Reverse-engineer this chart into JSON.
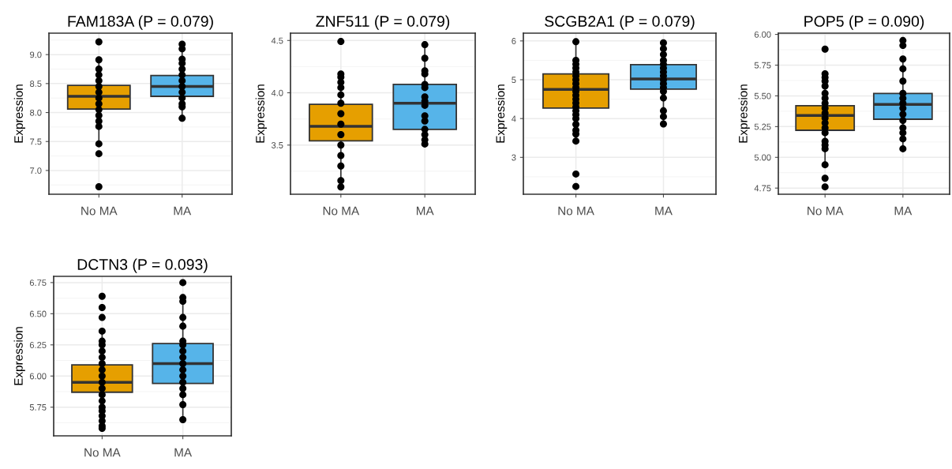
{
  "chart_data": [
    {
      "type": "box",
      "title": "FAM183A (P = 0.079)",
      "ylabel": "Expression",
      "categories": [
        "No MA",
        "MA"
      ],
      "colors": [
        "#e69f00",
        "#56b4e9"
      ],
      "grid": true,
      "ylim": [
        6.59,
        9.37
      ],
      "yticks": [
        {
          "value": 7.0,
          "label": "7.0"
        },
        {
          "value": 7.5,
          "label": "7.5"
        },
        {
          "value": 8.0,
          "label": "8.0"
        },
        {
          "value": 8.5,
          "label": "8.5"
        },
        {
          "value": 9.0,
          "label": "9.0"
        }
      ],
      "boxes": [
        {
          "low": 7.46,
          "q1": 8.06,
          "median": 8.28,
          "q3": 8.47,
          "high": 8.91
        },
        {
          "low": 7.9,
          "q1": 8.28,
          "median": 8.45,
          "q3": 8.64,
          "high": 9.18
        }
      ],
      "series": [
        {
          "type": "scatter",
          "color": "#000000",
          "x": [
            "No MA",
            "No MA",
            "No MA",
            "No MA",
            "No MA",
            "No MA",
            "No MA",
            "No MA",
            "No MA",
            "No MA",
            "No MA",
            "No MA",
            "No MA",
            "No MA",
            "No MA",
            "No MA",
            "MA",
            "MA",
            "MA",
            "MA",
            "MA",
            "MA",
            "MA",
            "MA",
            "MA",
            "MA",
            "MA",
            "MA",
            "MA"
          ],
          "values": [
            9.22,
            8.91,
            8.75,
            8.65,
            8.55,
            8.45,
            8.35,
            8.25,
            8.15,
            8.05,
            7.95,
            7.85,
            7.76,
            7.46,
            7.29,
            6.72,
            9.18,
            9.1,
            8.92,
            8.85,
            8.75,
            8.65,
            8.55,
            8.45,
            8.35,
            8.25,
            8.15,
            8.1,
            7.9
          ]
        }
      ]
    },
    {
      "type": "box",
      "title": "ZNF511 (P = 0.079)",
      "ylabel": "Expression",
      "categories": [
        "No MA",
        "MA"
      ],
      "colors": [
        "#e69f00",
        "#56b4e9"
      ],
      "grid": true,
      "ylim": [
        3.03,
        4.57
      ],
      "yticks": [
        {
          "value": 3.5,
          "label": "3.5"
        },
        {
          "value": 4.0,
          "label": "4.0"
        },
        {
          "value": 4.5,
          "label": "4.5"
        }
      ],
      "boxes": [
        {
          "low": 3.1,
          "q1": 3.54,
          "median": 3.68,
          "q3": 3.89,
          "high": 4.18
        },
        {
          "low": 3.51,
          "q1": 3.65,
          "median": 3.9,
          "q3": 4.08,
          "high": 4.46
        }
      ],
      "series": [
        {
          "type": "scatter",
          "color": "#000000",
          "x": [
            "No MA",
            "No MA",
            "No MA",
            "No MA",
            "No MA",
            "No MA",
            "No MA",
            "No MA",
            "No MA",
            "No MA",
            "No MA",
            "No MA",
            "No MA",
            "No MA",
            "No MA",
            "MA",
            "MA",
            "MA",
            "MA",
            "MA",
            "MA",
            "MA",
            "MA",
            "MA",
            "MA",
            "MA",
            "MA",
            "MA",
            "MA",
            "MA"
          ],
          "values": [
            4.49,
            4.18,
            4.15,
            4.1,
            4.05,
            3.98,
            3.9,
            3.8,
            3.7,
            3.6,
            3.5,
            3.4,
            3.3,
            3.16,
            3.1,
            4.46,
            4.33,
            4.21,
            4.18,
            4.08,
            4.05,
            3.96,
            3.92,
            3.88,
            3.78,
            3.73,
            3.65,
            3.6,
            3.55,
            3.51
          ]
        }
      ]
    },
    {
      "type": "box",
      "title": "SCGB2A1 (P = 0.079)",
      "ylabel": "Expression",
      "categories": [
        "No MA",
        "MA"
      ],
      "colors": [
        "#e69f00",
        "#56b4e9"
      ],
      "grid": true,
      "ylim": [
        2.05,
        6.2
      ],
      "yticks": [
        3,
        4,
        5,
        6
      ],
      "boxes": [
        {
          "low": 3.42,
          "q1": 4.27,
          "median": 4.75,
          "q3": 5.15,
          "high": 5.98
        },
        {
          "low": 3.86,
          "q1": 4.76,
          "median": 5.02,
          "q3": 5.39,
          "high": 5.95
        }
      ],
      "series": [
        {
          "type": "scatter",
          "color": "#000000",
          "x": [
            "No MA",
            "No MA",
            "No MA",
            "No MA",
            "No MA",
            "No MA",
            "No MA",
            "No MA",
            "No MA",
            "No MA",
            "No MA",
            "No MA",
            "No MA",
            "No MA",
            "No MA",
            "No MA",
            "No MA",
            "No MA",
            "No MA",
            "No MA",
            "No MA",
            "No MA",
            "No MA",
            "MA",
            "MA",
            "MA",
            "MA",
            "MA",
            "MA",
            "MA",
            "MA",
            "MA",
            "MA",
            "MA",
            "MA",
            "MA",
            "MA",
            "MA",
            "MA"
          ],
          "values": [
            5.98,
            5.5,
            5.4,
            5.3,
            5.2,
            5.1,
            5.0,
            4.9,
            4.8,
            4.7,
            4.6,
            4.5,
            4.4,
            4.3,
            4.2,
            4.1,
            4.0,
            3.85,
            3.7,
            3.6,
            3.42,
            2.57,
            2.25,
            5.95,
            5.8,
            5.65,
            5.5,
            5.4,
            5.3,
            5.2,
            5.1,
            5.0,
            4.9,
            4.8,
            4.7,
            4.53,
            4.2,
            4.05,
            3.86
          ]
        }
      ]
    },
    {
      "type": "box",
      "title": "POP5 (P = 0.090)",
      "ylabel": "Expression",
      "categories": [
        "No MA",
        "MA"
      ],
      "colors": [
        "#e69f00",
        "#56b4e9"
      ],
      "grid": true,
      "ylim": [
        4.7,
        6.01
      ],
      "yticks": [
        {
          "value": 4.75,
          "label": "4.75"
        },
        {
          "value": 5.0,
          "label": "5.00"
        },
        {
          "value": 5.25,
          "label": "5.25"
        },
        {
          "value": 5.5,
          "label": "5.50"
        },
        {
          "value": 5.75,
          "label": "5.75"
        },
        {
          "value": 6.0,
          "label": "6.00"
        }
      ],
      "boxes": [
        {
          "low": 4.94,
          "q1": 5.22,
          "median": 5.34,
          "q3": 5.42,
          "high": 5.68
        },
        {
          "low": 5.07,
          "q1": 5.31,
          "median": 5.43,
          "q3": 5.52,
          "high": 5.8
        }
      ],
      "series": [
        {
          "type": "scatter",
          "color": "#000000",
          "x": [
            "No MA",
            "No MA",
            "No MA",
            "No MA",
            "No MA",
            "No MA",
            "No MA",
            "No MA",
            "No MA",
            "No MA",
            "No MA",
            "No MA",
            "No MA",
            "No MA",
            "No MA",
            "No MA",
            "No MA",
            "No MA",
            "No MA",
            "No MA",
            "MA",
            "MA",
            "MA",
            "MA",
            "MA",
            "MA",
            "MA",
            "MA",
            "MA",
            "MA",
            "MA",
            "MA",
            "MA",
            "MA",
            "MA"
          ],
          "values": [
            5.88,
            5.68,
            5.65,
            5.62,
            5.58,
            5.52,
            5.48,
            5.44,
            5.4,
            5.36,
            5.32,
            5.28,
            5.24,
            5.2,
            5.13,
            5.1,
            5.07,
            4.94,
            4.83,
            4.76,
            5.95,
            5.91,
            5.8,
            5.72,
            5.62,
            5.52,
            5.48,
            5.44,
            5.4,
            5.35,
            5.3,
            5.24,
            5.2,
            5.15,
            5.07
          ]
        }
      ]
    },
    {
      "type": "box",
      "title": "DCTN3 (P = 0.093)",
      "ylabel": "Expression",
      "categories": [
        "No MA",
        "MA"
      ],
      "colors": [
        "#e69f00",
        "#56b4e9"
      ],
      "grid": true,
      "ylim": [
        5.52,
        6.8
      ],
      "yticks": [
        {
          "value": 5.75,
          "label": "5.75"
        },
        {
          "value": 6.0,
          "label": "6.00"
        },
        {
          "value": 6.25,
          "label": "6.25"
        },
        {
          "value": 6.5,
          "label": "6.50"
        },
        {
          "value": 6.75,
          "label": "6.75"
        }
      ],
      "boxes": [
        {
          "low": 5.58,
          "q1": 5.87,
          "median": 5.95,
          "q3": 6.09,
          "high": 6.36
        },
        {
          "low": 5.65,
          "q1": 5.94,
          "median": 6.1,
          "q3": 6.26,
          "high": 6.63
        }
      ],
      "series": [
        {
          "type": "scatter",
          "color": "#000000",
          "x": [
            "No MA",
            "No MA",
            "No MA",
            "No MA",
            "No MA",
            "No MA",
            "No MA",
            "No MA",
            "No MA",
            "No MA",
            "No MA",
            "No MA",
            "No MA",
            "No MA",
            "No MA",
            "No MA",
            "No MA",
            "No MA",
            "No MA",
            "No MA",
            "No MA",
            "MA",
            "MA",
            "MA",
            "MA",
            "MA",
            "MA",
            "MA",
            "MA",
            "MA",
            "MA",
            "MA",
            "MA",
            "MA",
            "MA",
            "MA",
            "MA",
            "MA"
          ],
          "values": [
            6.64,
            6.55,
            6.47,
            6.36,
            6.28,
            6.25,
            6.2,
            6.15,
            6.1,
            6.05,
            6.0,
            5.95,
            5.9,
            5.85,
            5.8,
            5.75,
            5.72,
            5.68,
            5.64,
            5.6,
            5.58,
            6.75,
            6.63,
            6.6,
            6.47,
            6.4,
            6.28,
            6.25,
            6.2,
            6.15,
            6.1,
            6.05,
            6.0,
            5.95,
            5.9,
            5.85,
            5.77,
            5.65
          ]
        }
      ]
    }
  ]
}
